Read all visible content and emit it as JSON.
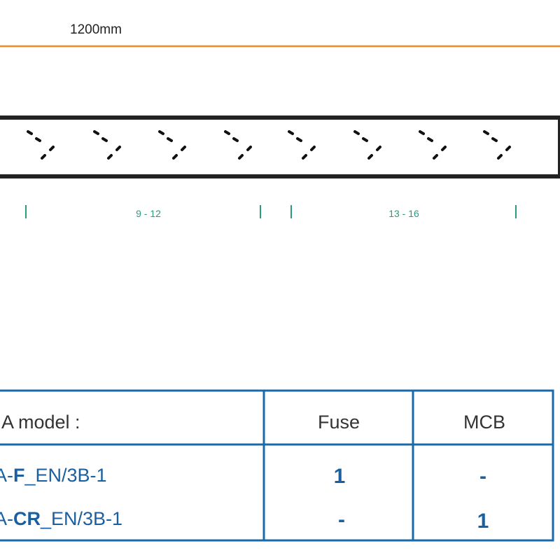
{
  "dimension": {
    "label": "1200mm"
  },
  "ranges": [
    "9 - 12",
    "13 - 16"
  ],
  "table": {
    "header": [
      "A model :",
      "Fuse",
      "MCB"
    ],
    "rows": [
      {
        "model": {
          "prefix": "A-",
          "code": "F",
          "suffix": "_EN/3B-1"
        },
        "fuse": "1",
        "mcb": "-"
      },
      {
        "model": {
          "prefix": "A-",
          "code": "CR",
          "suffix": "_EN/3B-1"
        },
        "fuse": "-",
        "mcb": "1"
      }
    ]
  }
}
